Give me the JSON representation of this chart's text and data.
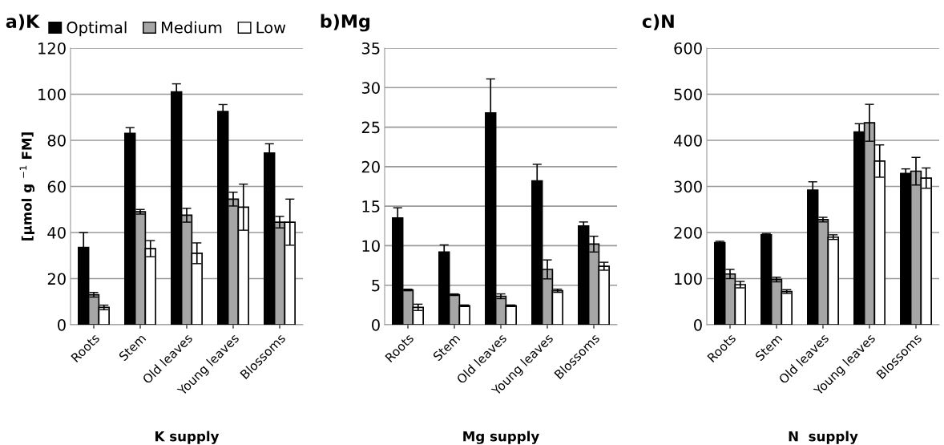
{
  "chart_data": [
    {
      "type": "bar",
      "title": "a)K",
      "xlabel": "K supply",
      "ylabel": "[μmol g $^{−1}$ FM]",
      "categories": [
        "Roots",
        "Stem",
        "Old leaves",
        "Young leaves",
        "Blossoms"
      ],
      "ylim": [
        0,
        120
      ],
      "yticks": [
        0,
        20,
        40,
        60,
        80,
        100,
        120
      ],
      "grid": "y",
      "legend": "top left",
      "series": [
        {
          "name": "Optimal",
          "color": "#000000",
          "values": [
            33.5,
            83,
            101,
            92.5,
            74.5
          ],
          "errors": [
            6.5,
            2.5,
            3.5,
            3,
            4
          ]
        },
        {
          "name": "Medium",
          "color": "#a6a6a6",
          "values": [
            13,
            49,
            47.5,
            54.5,
            44.5
          ],
          "errors": [
            1,
            1,
            3,
            3,
            2.5
          ]
        },
        {
          "name": "Low",
          "color": "#ffffff",
          "values": [
            7.5,
            33,
            31,
            51,
            44.5
          ],
          "errors": [
            1,
            3.5,
            4.5,
            10,
            10
          ]
        }
      ]
    },
    {
      "type": "bar",
      "title": "b)Mg",
      "xlabel": "Mg supply",
      "categories": [
        "Roots",
        "Stem",
        "Old leaves",
        "Young leaves",
        "Blossoms"
      ],
      "ylim": [
        0,
        35
      ],
      "yticks": [
        0,
        5,
        10,
        15,
        20,
        25,
        30,
        35
      ],
      "grid": "y",
      "series": [
        {
          "color": "#000000",
          "values": [
            13.5,
            9.2,
            26.8,
            18.2,
            12.5
          ],
          "errors": [
            1.3,
            0.9,
            4.3,
            2.1,
            0.5
          ]
        },
        {
          "color": "#a6a6a6",
          "values": [
            4.4,
            3.8,
            3.6,
            7,
            10.2
          ],
          "errors": [
            0.1,
            0.1,
            0.3,
            1.2,
            1
          ]
        },
        {
          "color": "#ffffff",
          "values": [
            2.2,
            2.4,
            2.4,
            4.3,
            7.4
          ],
          "errors": [
            0.4,
            0.1,
            0.1,
            0.2,
            0.5
          ]
        }
      ]
    },
    {
      "type": "bar",
      "title": "c)N",
      "xlabel": "N  supply",
      "categories": [
        "Roots",
        "Stem",
        "Old leaves",
        "Young leaves",
        "Blossoms"
      ],
      "ylim": [
        0,
        600
      ],
      "yticks": [
        0,
        100,
        200,
        300,
        400,
        500,
        600
      ],
      "grid": "y",
      "series": [
        {
          "color": "#000000",
          "values": [
            178,
            195,
            292,
            418,
            328
          ],
          "errors": [
            3,
            3,
            18,
            18,
            10
          ]
        },
        {
          "color": "#a6a6a6",
          "values": [
            110,
            98,
            228,
            438,
            333
          ],
          "errors": [
            10,
            5,
            5,
            40,
            30
          ]
        },
        {
          "color": "#ffffff",
          "values": [
            87,
            72,
            190,
            355,
            318
          ],
          "errors": [
            7,
            4,
            5,
            35,
            22
          ]
        }
      ]
    }
  ]
}
